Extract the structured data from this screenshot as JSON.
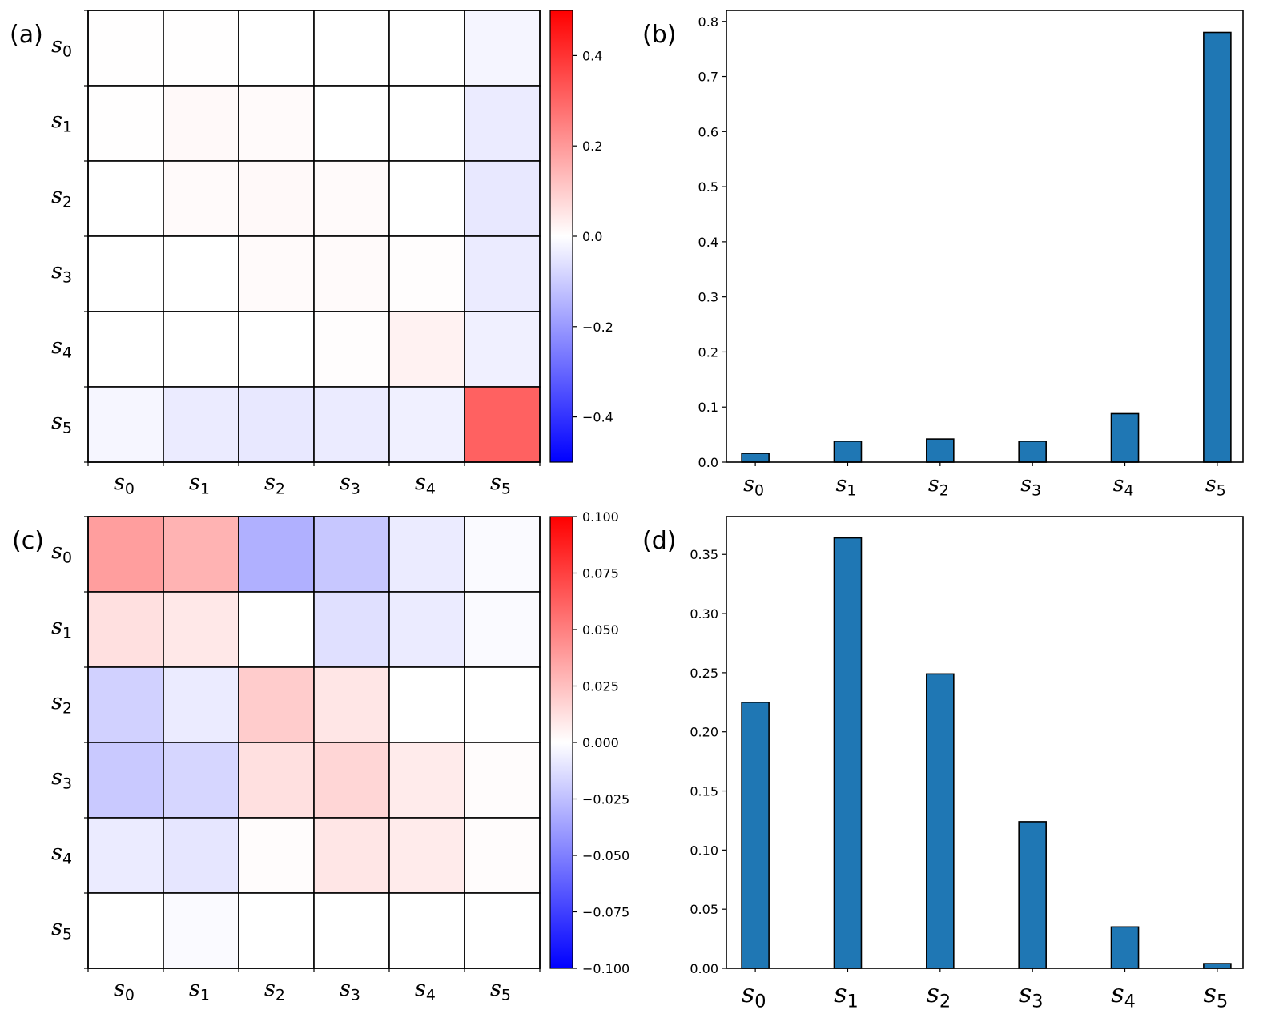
{
  "chart_data": [
    {
      "id": "a",
      "panel_label": "(a)",
      "type": "heatmap",
      "rows": [
        {
          "base": "s",
          "sub": "0"
        },
        {
          "base": "s",
          "sub": "1"
        },
        {
          "base": "s",
          "sub": "2"
        },
        {
          "base": "s",
          "sub": "3"
        },
        {
          "base": "s",
          "sub": "4"
        },
        {
          "base": "s",
          "sub": "5"
        }
      ],
      "cols": [
        {
          "base": "s",
          "sub": "0"
        },
        {
          "base": "s",
          "sub": "1"
        },
        {
          "base": "s",
          "sub": "2"
        },
        {
          "base": "s",
          "sub": "3"
        },
        {
          "base": "s",
          "sub": "4"
        },
        {
          "base": "s",
          "sub": "5"
        }
      ],
      "values": [
        [
          0.002,
          0.002,
          0.0,
          0.0,
          0.0,
          -0.02
        ],
        [
          0.002,
          0.012,
          0.01,
          0.0,
          0.0,
          -0.04
        ],
        [
          0.0,
          0.01,
          0.012,
          0.01,
          0.0,
          -0.045
        ],
        [
          0.0,
          0.0,
          0.01,
          0.01,
          0.003,
          -0.04
        ],
        [
          0.0,
          0.0,
          0.0,
          0.003,
          0.025,
          -0.03
        ],
        [
          -0.018,
          -0.04,
          -0.045,
          -0.04,
          -0.03,
          0.31
        ]
      ],
      "colorbar": {
        "min": -0.5,
        "max": 0.5,
        "ticks": [
          -0.4,
          -0.2,
          0.0,
          0.2,
          0.4
        ],
        "tick_labels": [
          "−0.4",
          "−0.2",
          "0.0",
          "0.2",
          "0.4"
        ]
      },
      "colormap": "bwr"
    },
    {
      "id": "b",
      "panel_label": "(b)",
      "type": "bar",
      "categories": [
        {
          "base": "s",
          "sub": "0"
        },
        {
          "base": "s",
          "sub": "1"
        },
        {
          "base": "s",
          "sub": "2"
        },
        {
          "base": "s",
          "sub": "3"
        },
        {
          "base": "s",
          "sub": "4"
        },
        {
          "base": "s",
          "sub": "5"
        }
      ],
      "values": [
        0.016,
        0.038,
        0.042,
        0.038,
        0.088,
        0.78
      ],
      "ylim": [
        0,
        0.82
      ],
      "yticks": [
        0.0,
        0.1,
        0.2,
        0.3,
        0.4,
        0.5,
        0.6,
        0.7,
        0.8
      ],
      "ytick_labels": [
        "0.0",
        "0.1",
        "0.2",
        "0.3",
        "0.4",
        "0.5",
        "0.6",
        "0.7",
        "0.8"
      ],
      "bar_color": "#1f77b4"
    },
    {
      "id": "c",
      "panel_label": "(c)",
      "type": "heatmap",
      "rows": [
        {
          "base": "s",
          "sub": "0"
        },
        {
          "base": "s",
          "sub": "1"
        },
        {
          "base": "s",
          "sub": "2"
        },
        {
          "base": "s",
          "sub": "3"
        },
        {
          "base": "s",
          "sub": "4"
        },
        {
          "base": "s",
          "sub": "5"
        }
      ],
      "cols": [
        {
          "base": "s",
          "sub": "0"
        },
        {
          "base": "s",
          "sub": "1"
        },
        {
          "base": "s",
          "sub": "2"
        },
        {
          "base": "s",
          "sub": "3"
        },
        {
          "base": "s",
          "sub": "4"
        },
        {
          "base": "s",
          "sub": "5"
        }
      ],
      "values": [
        [
          0.038,
          0.03,
          -0.031,
          -0.022,
          -0.008,
          -0.002
        ],
        [
          0.012,
          0.009,
          0.0,
          -0.012,
          -0.008,
          -0.002
        ],
        [
          -0.018,
          -0.008,
          0.02,
          0.01,
          0.0,
          0.0
        ],
        [
          -0.021,
          -0.016,
          0.012,
          0.016,
          0.008,
          0.001
        ],
        [
          -0.008,
          -0.01,
          0.001,
          0.01,
          0.008,
          0.001
        ],
        [
          0.0,
          -0.002,
          0.0,
          0.0,
          0.0,
          0.0
        ]
      ],
      "colorbar": {
        "min": -0.1,
        "max": 0.1,
        "ticks": [
          -0.1,
          -0.075,
          -0.05,
          -0.025,
          0.0,
          0.025,
          0.05,
          0.075,
          0.1
        ],
        "tick_labels": [
          "−0.100",
          "−0.075",
          "−0.050",
          "−0.025",
          "0.000",
          "0.025",
          "0.050",
          "0.075",
          "0.100"
        ]
      },
      "colormap": "bwr"
    },
    {
      "id": "d",
      "panel_label": "(d)",
      "type": "bar",
      "categories": [
        {
          "base": "s",
          "sub": "0"
        },
        {
          "base": "s",
          "sub": "1"
        },
        {
          "base": "s",
          "sub": "2"
        },
        {
          "base": "s",
          "sub": "3"
        },
        {
          "base": "s",
          "sub": "4"
        },
        {
          "base": "s",
          "sub": "5"
        }
      ],
      "values": [
        0.225,
        0.364,
        0.249,
        0.124,
        0.035,
        0.004
      ],
      "ylim": [
        0,
        0.382
      ],
      "yticks": [
        0.0,
        0.05,
        0.1,
        0.15,
        0.2,
        0.25,
        0.3,
        0.35
      ],
      "ytick_labels": [
        "0.00",
        "0.05",
        "0.10",
        "0.15",
        "0.20",
        "0.25",
        "0.30",
        "0.35"
      ],
      "bar_color": "#1f77b4"
    }
  ]
}
